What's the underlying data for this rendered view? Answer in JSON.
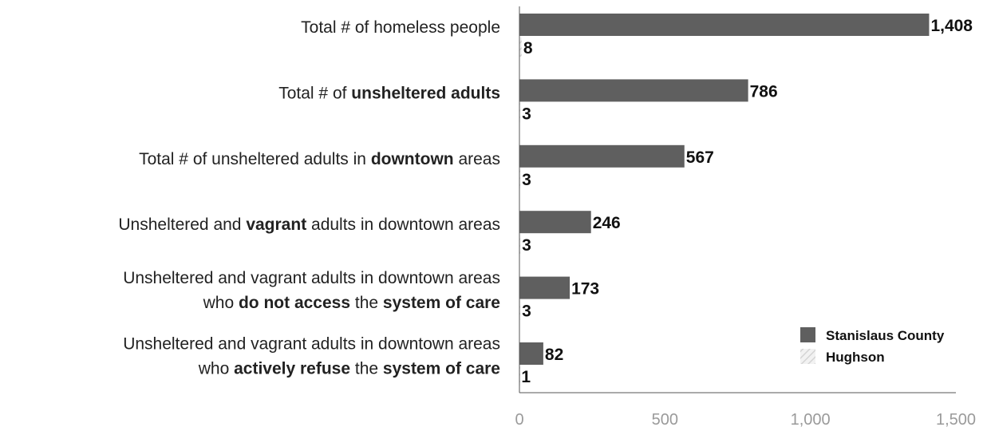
{
  "chart_data": {
    "type": "bar",
    "orientation": "horizontal",
    "categories": [
      [
        {
          "t": "Total # of homeless people",
          "b": false
        }
      ],
      [
        {
          "t": "Total # of ",
          "b": false
        },
        {
          "t": "unsheltered adults",
          "b": true
        }
      ],
      [
        {
          "t": "Total # of unsheltered adults in ",
          "b": false
        },
        {
          "t": "downtown",
          "b": true
        },
        {
          "t": " areas",
          "b": false
        }
      ],
      [
        {
          "t": "Unsheltered and ",
          "b": false
        },
        {
          "t": "vagrant",
          "b": true
        },
        {
          "t": " adults in downtown areas",
          "b": false
        }
      ],
      [
        {
          "t": "Unsheltered and vagrant adults in downtown areas",
          "b": false
        },
        {
          "br": true
        },
        {
          "t": "who ",
          "b": false
        },
        {
          "t": "do not access",
          "b": true
        },
        {
          "t": " the ",
          "b": false
        },
        {
          "t": "system of care",
          "b": true
        }
      ],
      [
        {
          "t": "Unsheltered and vagrant adults in downtown areas",
          "b": false
        },
        {
          "br": true
        },
        {
          "t": "who ",
          "b": false
        },
        {
          "t": "actively refuse",
          "b": true
        },
        {
          "t": " the ",
          "b": false
        },
        {
          "t": "system of care",
          "b": true
        }
      ]
    ],
    "series": [
      {
        "name": "Stanislaus County",
        "values": [
          1408,
          786,
          567,
          246,
          173,
          82
        ],
        "labels": [
          "1,408",
          "786",
          "567",
          "246",
          "173",
          "82"
        ],
        "color": "#5f5f5f"
      },
      {
        "name": "Hughson",
        "values": [
          8,
          3,
          3,
          3,
          3,
          1
        ],
        "labels": [
          "8",
          "3",
          "3",
          "3",
          "3",
          "1"
        ],
        "color": "#e6e6e6"
      }
    ],
    "xlim": [
      0,
      1500
    ],
    "xticks": [
      0,
      500,
      1000,
      1500
    ],
    "xtick_labels": [
      "0",
      "500",
      "1,000",
      "1,500"
    ],
    "legend": "bottom-right",
    "grid": false
  }
}
